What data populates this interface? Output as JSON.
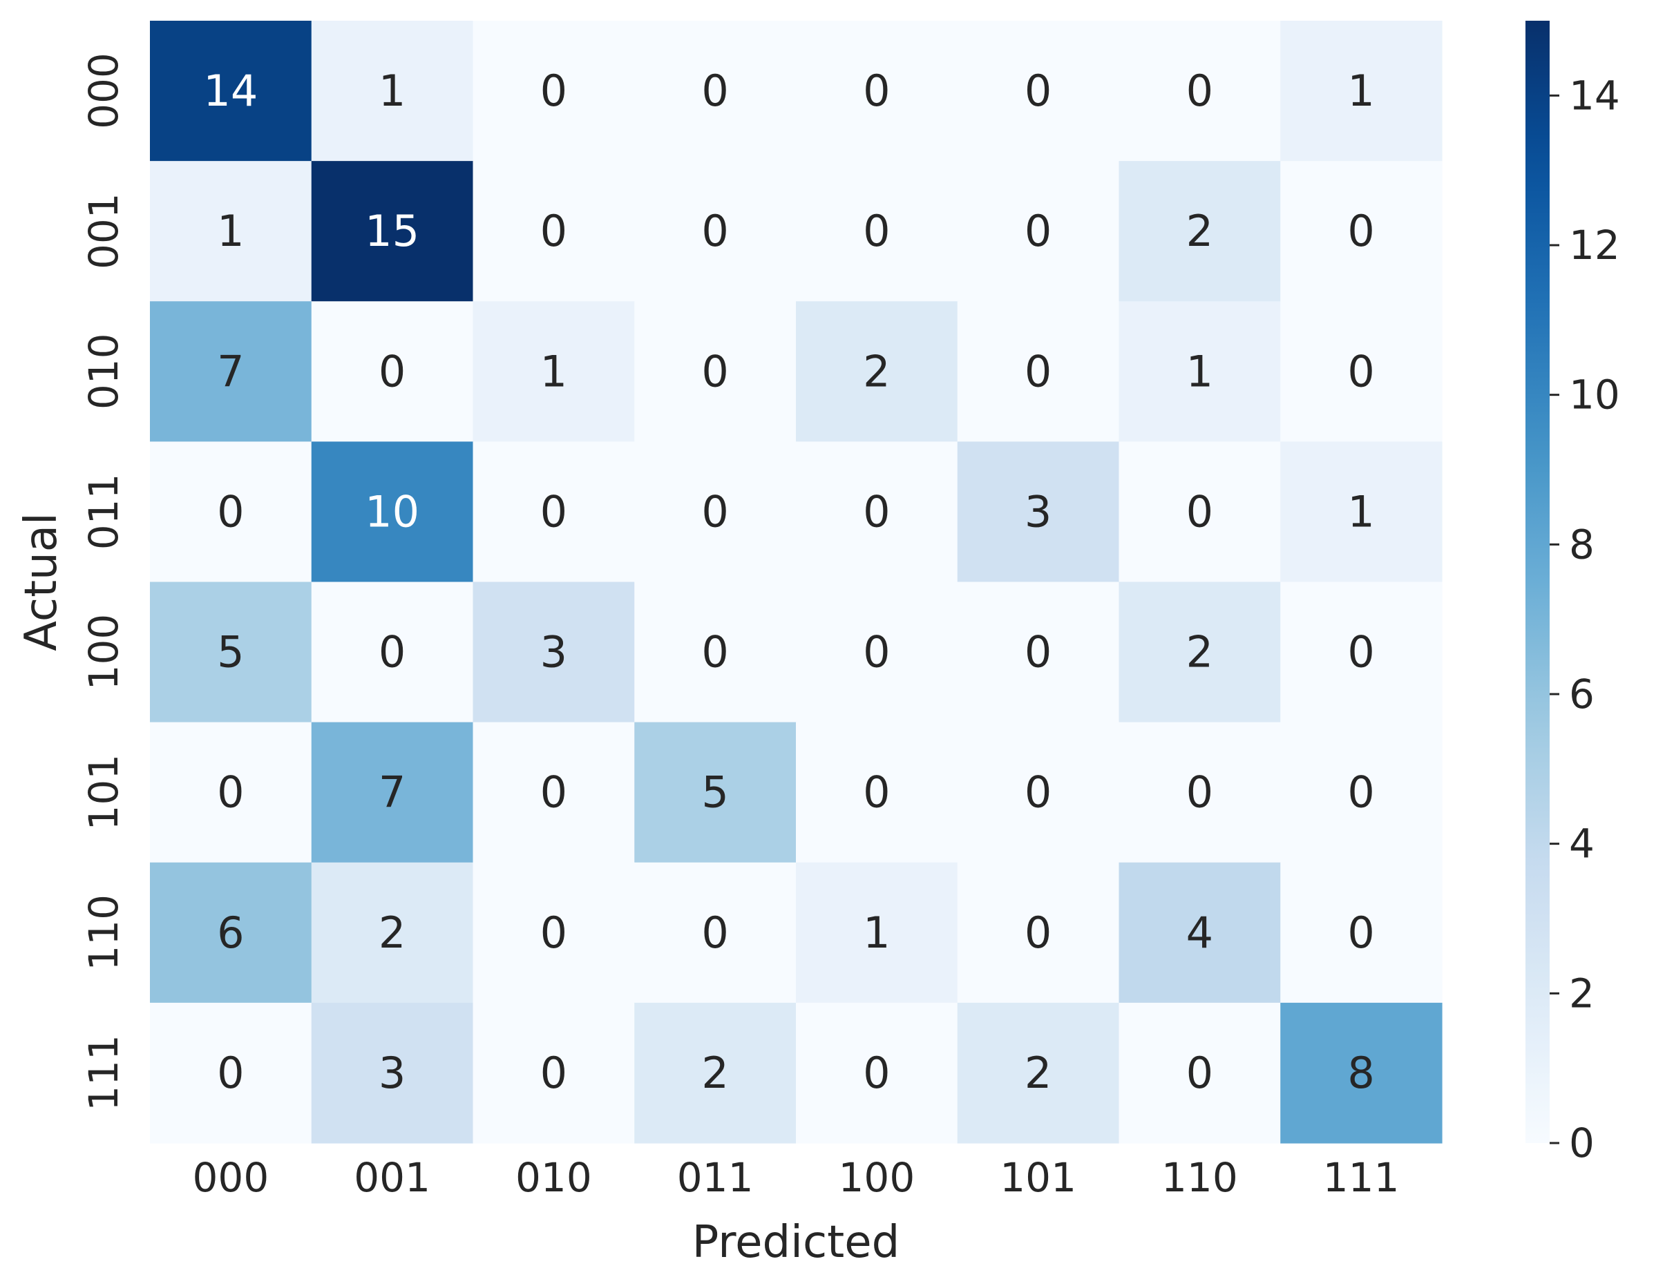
{
  "chart_data": {
    "type": "heatmap",
    "xlabel": "Predicted",
    "ylabel": "Actual",
    "x_categories": [
      "000",
      "001",
      "010",
      "011",
      "100",
      "101",
      "110",
      "111"
    ],
    "y_categories": [
      "000",
      "001",
      "010",
      "011",
      "100",
      "101",
      "110",
      "111"
    ],
    "values": [
      [
        14,
        1,
        0,
        0,
        0,
        0,
        0,
        1
      ],
      [
        1,
        15,
        0,
        0,
        0,
        0,
        2,
        0
      ],
      [
        7,
        0,
        1,
        0,
        2,
        0,
        1,
        0
      ],
      [
        0,
        10,
        0,
        0,
        0,
        3,
        0,
        1
      ],
      [
        5,
        0,
        3,
        0,
        0,
        0,
        2,
        0
      ],
      [
        0,
        7,
        0,
        5,
        0,
        0,
        0,
        0
      ],
      [
        6,
        2,
        0,
        0,
        1,
        0,
        4,
        0
      ],
      [
        0,
        3,
        0,
        2,
        0,
        2,
        0,
        8
      ]
    ],
    "colorbar": {
      "colormap": "Blues",
      "vmin": 0,
      "vmax": 15,
      "ticks": [
        0,
        2,
        4,
        6,
        8,
        10,
        12,
        14
      ]
    },
    "annotations": true
  }
}
